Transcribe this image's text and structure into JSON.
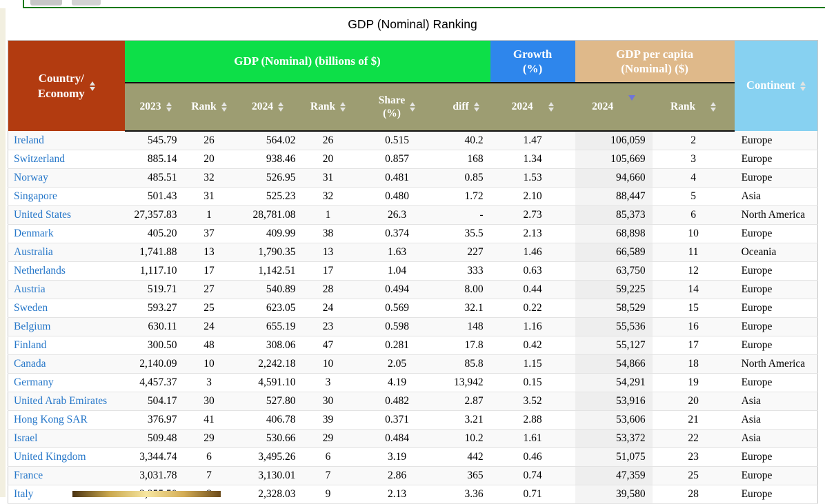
{
  "title": "GDP (Nominal) Ranking",
  "header": {
    "country": "Country/\nEconomy",
    "gdp_group": "GDP (Nominal) (billions of $)",
    "growth_group": "Growth\n(%)",
    "gdppc_group": "GDP per capita\n(Nominal) ($)",
    "continent": "Continent",
    "sub": {
      "gdp2023": "2023",
      "rank2023": "Rank",
      "gdp2024": "2024",
      "rank2024": "Rank",
      "share": "Share\n(%)",
      "diff": "diff",
      "growth": "2024",
      "gdppc": "2024",
      "gdppc_rank": "Rank"
    }
  },
  "sort": {
    "active_column": "gdppc_2024",
    "direction": "desc"
  },
  "colors": {
    "country_header": "#b23b10",
    "gdp_header": "#0ddf48",
    "growth_header": "#2e86ec",
    "gdppc_header": "#dfb98a",
    "continent_header": "#87d1f1",
    "subheader": "#9d9d72",
    "link": "#2677c9",
    "active_sort_arrow": "#6f74d8"
  },
  "rows": [
    {
      "country": "Ireland",
      "gdp2023": "545.79",
      "rank2023": "26",
      "gdp2024": "564.02",
      "rank2024": "26",
      "share": "0.515",
      "diff": "40.2",
      "growth": "1.47",
      "gdppc": "106,059",
      "gdppc_rank": "2",
      "continent": "Europe"
    },
    {
      "country": "Switzerland",
      "gdp2023": "885.14",
      "rank2023": "20",
      "gdp2024": "938.46",
      "rank2024": "20",
      "share": "0.857",
      "diff": "168",
      "growth": "1.34",
      "gdppc": "105,669",
      "gdppc_rank": "3",
      "continent": "Europe"
    },
    {
      "country": "Norway",
      "gdp2023": "485.51",
      "rank2023": "32",
      "gdp2024": "526.95",
      "rank2024": "31",
      "share": "0.481",
      "diff": "0.85",
      "growth": "1.53",
      "gdppc": "94,660",
      "gdppc_rank": "4",
      "continent": "Europe"
    },
    {
      "country": "Singapore",
      "gdp2023": "501.43",
      "rank2023": "31",
      "gdp2024": "525.23",
      "rank2024": "32",
      "share": "0.480",
      "diff": "1.72",
      "growth": "2.10",
      "gdppc": "88,447",
      "gdppc_rank": "5",
      "continent": "Asia"
    },
    {
      "country": "United States",
      "gdp2023": "27,357.83",
      "rank2023": "1",
      "gdp2024": "28,781.08",
      "rank2024": "1",
      "share": "26.3",
      "diff": "-",
      "growth": "2.73",
      "gdppc": "85,373",
      "gdppc_rank": "6",
      "continent": "North America"
    },
    {
      "country": "Denmark",
      "gdp2023": "405.20",
      "rank2023": "37",
      "gdp2024": "409.99",
      "rank2024": "38",
      "share": "0.374",
      "diff": "35.5",
      "growth": "2.13",
      "gdppc": "68,898",
      "gdppc_rank": "10",
      "continent": "Europe"
    },
    {
      "country": "Australia",
      "gdp2023": "1,741.88",
      "rank2023": "13",
      "gdp2024": "1,790.35",
      "rank2024": "13",
      "share": "1.63",
      "diff": "227",
      "growth": "1.46",
      "gdppc": "66,589",
      "gdppc_rank": "11",
      "continent": "Oceania"
    },
    {
      "country": "Netherlands",
      "gdp2023": "1,117.10",
      "rank2023": "17",
      "gdp2024": "1,142.51",
      "rank2024": "17",
      "share": "1.04",
      "diff": "333",
      "growth": "0.63",
      "gdppc": "63,750",
      "gdppc_rank": "12",
      "continent": "Europe"
    },
    {
      "country": "Austria",
      "gdp2023": "519.71",
      "rank2023": "27",
      "gdp2024": "540.89",
      "rank2024": "28",
      "share": "0.494",
      "diff": "8.00",
      "growth": "0.44",
      "gdppc": "59,225",
      "gdppc_rank": "14",
      "continent": "Europe"
    },
    {
      "country": "Sweden",
      "gdp2023": "593.27",
      "rank2023": "25",
      "gdp2024": "623.05",
      "rank2024": "24",
      "share": "0.569",
      "diff": "32.1",
      "growth": "0.22",
      "gdppc": "58,529",
      "gdppc_rank": "15",
      "continent": "Europe"
    },
    {
      "country": "Belgium",
      "gdp2023": "630.11",
      "rank2023": "24",
      "gdp2024": "655.19",
      "rank2024": "23",
      "share": "0.598",
      "diff": "148",
      "growth": "1.16",
      "gdppc": "55,536",
      "gdppc_rank": "16",
      "continent": "Europe"
    },
    {
      "country": "Finland",
      "gdp2023": "300.50",
      "rank2023": "48",
      "gdp2024": "308.06",
      "rank2024": "47",
      "share": "0.281",
      "diff": "17.8",
      "growth": "0.42",
      "gdppc": "55,127",
      "gdppc_rank": "17",
      "continent": "Europe"
    },
    {
      "country": "Canada",
      "gdp2023": "2,140.09",
      "rank2023": "10",
      "gdp2024": "2,242.18",
      "rank2024": "10",
      "share": "2.05",
      "diff": "85.8",
      "growth": "1.15",
      "gdppc": "54,866",
      "gdppc_rank": "18",
      "continent": "North America"
    },
    {
      "country": "Germany",
      "gdp2023": "4,457.37",
      "rank2023": "3",
      "gdp2024": "4,591.10",
      "rank2024": "3",
      "share": "4.19",
      "diff": "13,942",
      "growth": "0.15",
      "gdppc": "54,291",
      "gdppc_rank": "19",
      "continent": "Europe"
    },
    {
      "country": "United Arab Emirates",
      "gdp2023": "504.17",
      "rank2023": "30",
      "gdp2024": "527.80",
      "rank2024": "30",
      "share": "0.482",
      "diff": "2.87",
      "growth": "3.52",
      "gdppc": "53,916",
      "gdppc_rank": "20",
      "continent": "Asia"
    },
    {
      "country": "Hong Kong SAR",
      "gdp2023": "376.97",
      "rank2023": "41",
      "gdp2024": "406.78",
      "rank2024": "39",
      "share": "0.371",
      "diff": "3.21",
      "growth": "2.88",
      "gdppc": "53,606",
      "gdppc_rank": "21",
      "continent": "Asia"
    },
    {
      "country": "Israel",
      "gdp2023": "509.48",
      "rank2023": "29",
      "gdp2024": "530.66",
      "rank2024": "29",
      "share": "0.484",
      "diff": "10.2",
      "growth": "1.61",
      "gdppc": "53,372",
      "gdppc_rank": "22",
      "continent": "Asia"
    },
    {
      "country": "United Kingdom",
      "gdp2023": "3,344.74",
      "rank2023": "6",
      "gdp2024": "3,495.26",
      "rank2024": "6",
      "share": "3.19",
      "diff": "442",
      "growth": "0.46",
      "gdppc": "51,075",
      "gdppc_rank": "23",
      "continent": "Europe"
    },
    {
      "country": "France",
      "gdp2023": "3,031.78",
      "rank2023": "7",
      "gdp2024": "3,130.01",
      "rank2024": "7",
      "share": "2.86",
      "diff": "365",
      "growth": "0.74",
      "gdppc": "47,359",
      "gdppc_rank": "25",
      "continent": "Europe"
    },
    {
      "country": "Italy",
      "gdp2023": "2,255.50",
      "rank2023": "8",
      "gdp2024": "2,328.03",
      "rank2024": "9",
      "share": "2.13",
      "diff": "3.36",
      "growth": "0.71",
      "gdppc": "39,580",
      "gdppc_rank": "28",
      "continent": "Europe"
    }
  ]
}
